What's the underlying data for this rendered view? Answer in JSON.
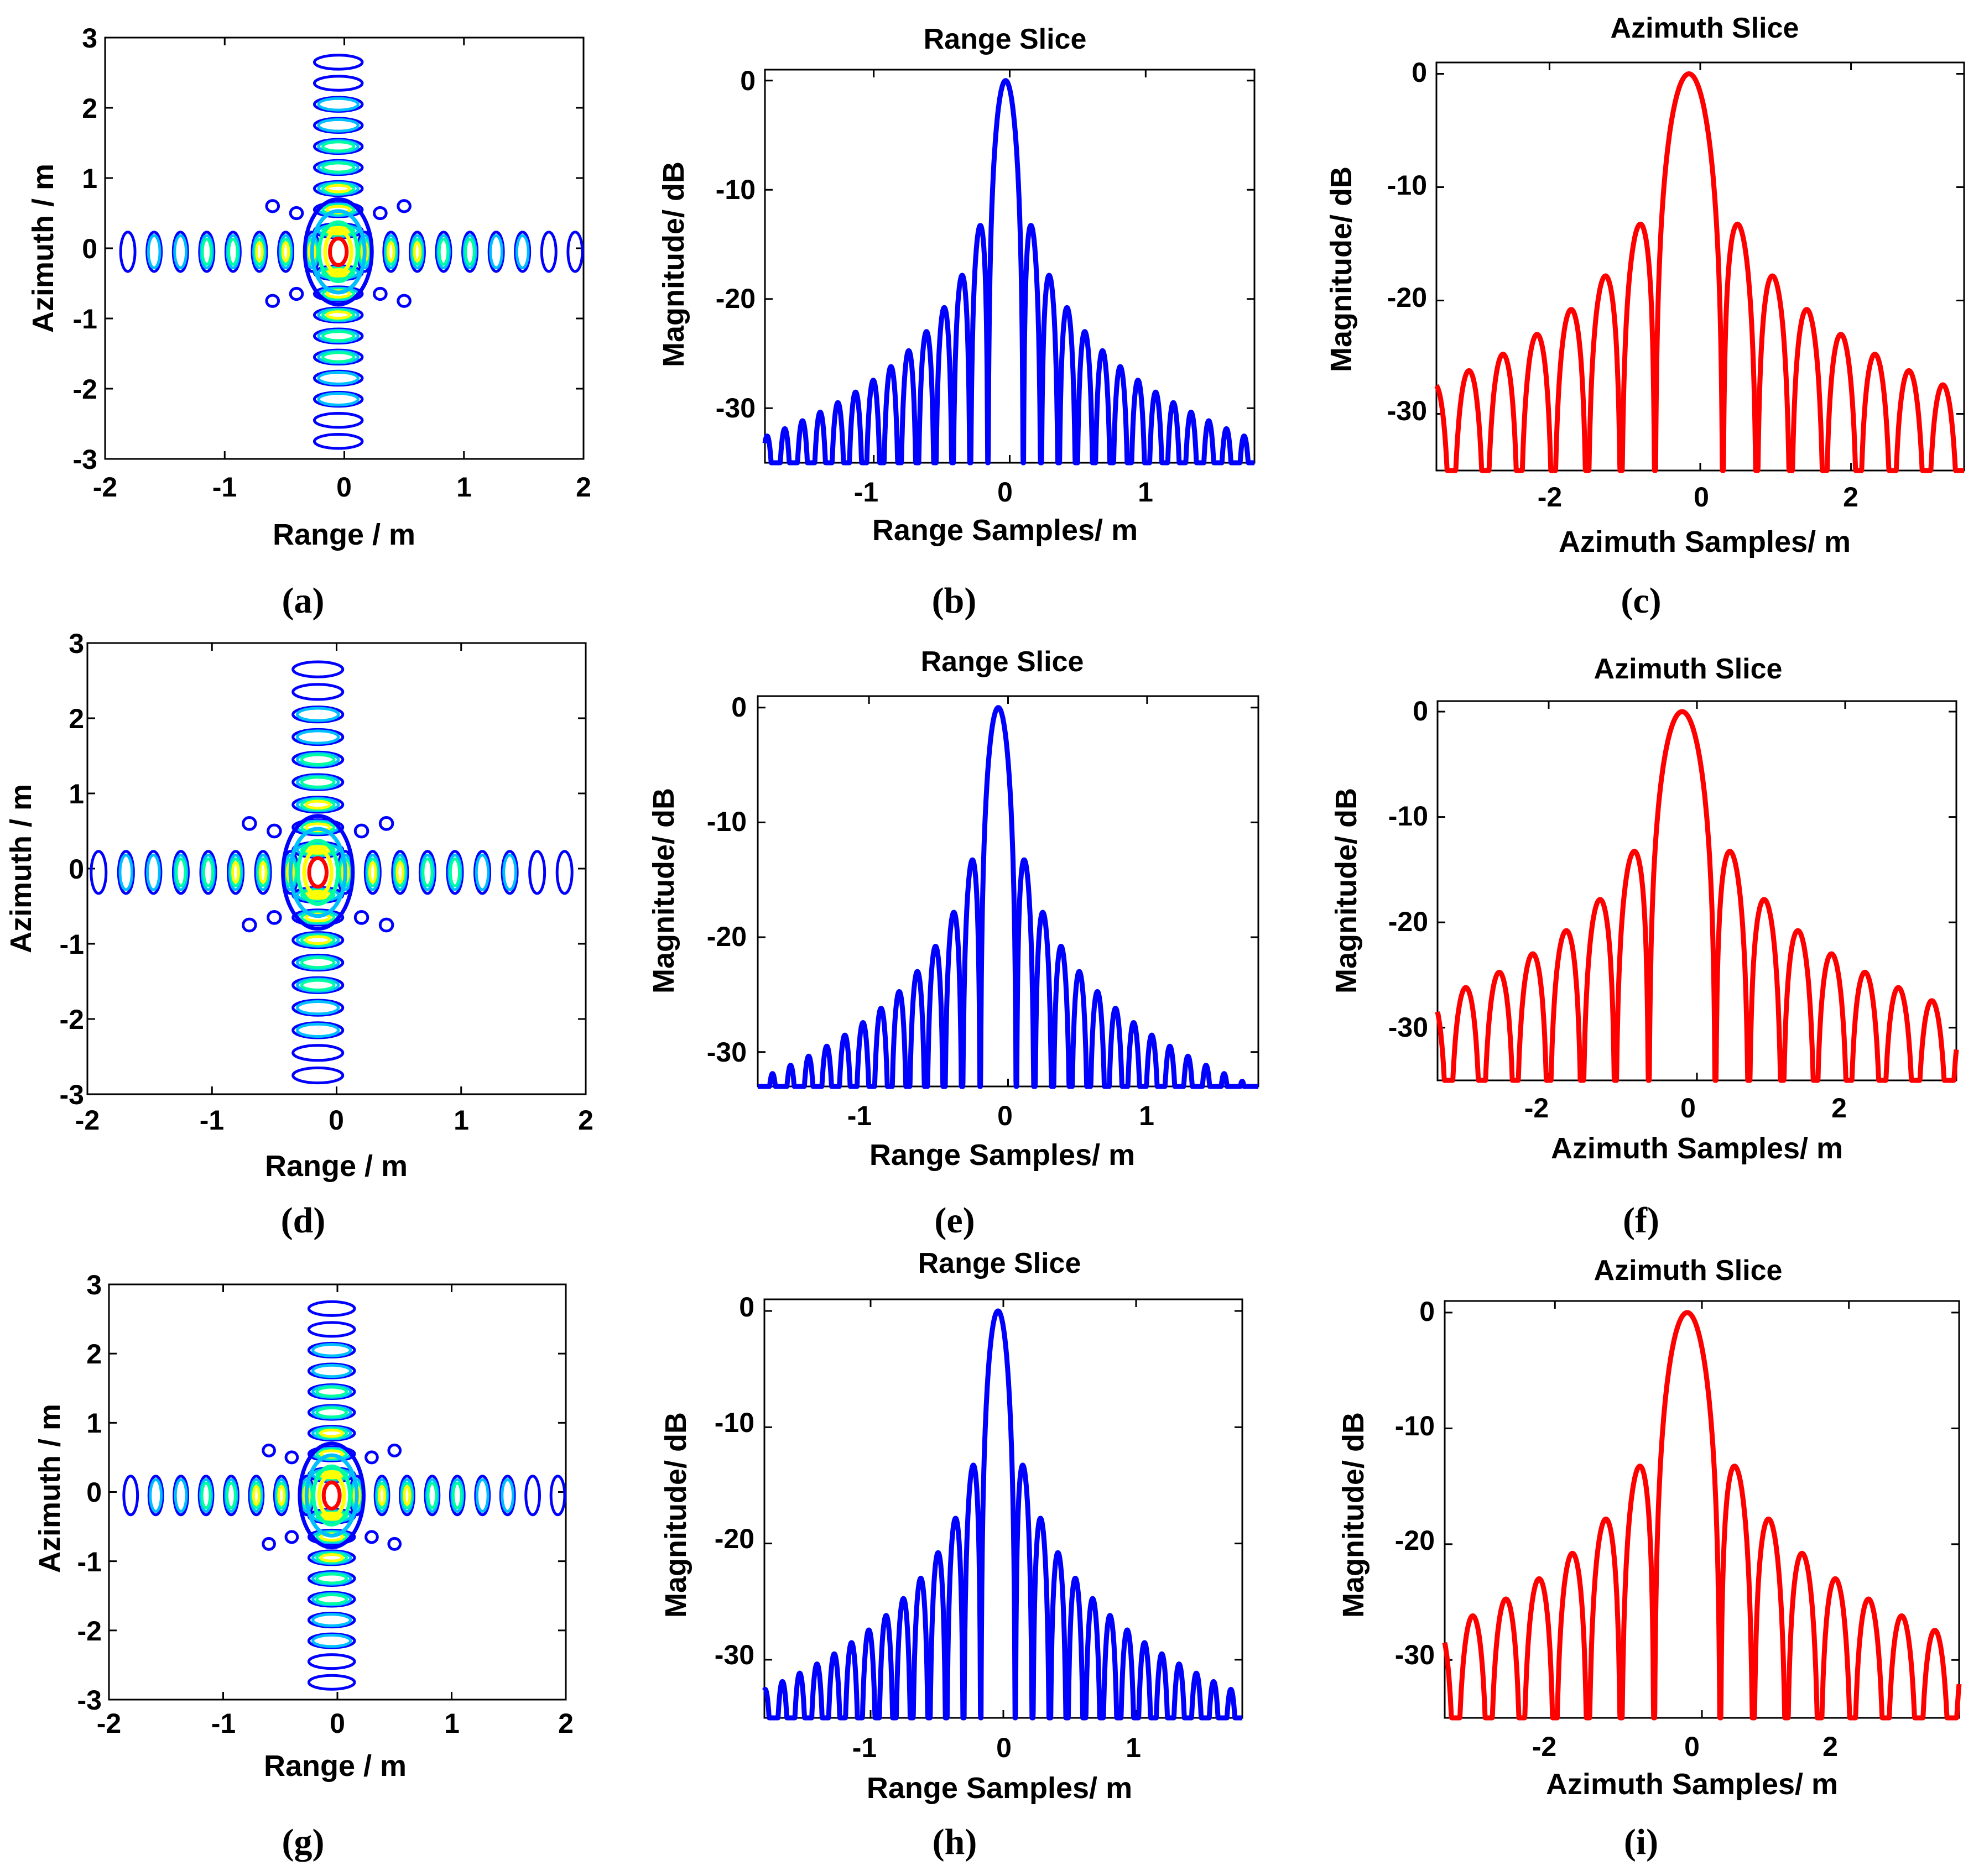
{
  "chart_data": [
    {
      "id": "a",
      "type": "contour",
      "panel_label": "(a)",
      "title": "",
      "xlabel": "Range / m",
      "ylabel": "Azimuth / m",
      "xlim": [
        -2,
        2
      ],
      "ylim": [
        -3,
        3
      ],
      "xticks": [
        "-2",
        "-1",
        "0",
        "1",
        "2"
      ],
      "yticks": [
        "-3",
        "-2",
        "-1",
        "0",
        "1",
        "2",
        "3"
      ],
      "peak": {
        "x": -0.05,
        "y": -0.05
      },
      "colormap": [
        "#00008f",
        "#0000ff",
        "#00bfff",
        "#00ffa0",
        "#ffff00",
        "#ff0000"
      ]
    },
    {
      "id": "b",
      "type": "line",
      "panel_label": "(b)",
      "title": "Range Slice",
      "xlabel": "Range Samples/ m",
      "ylabel": "Magnitude/ dB",
      "xlim": [
        -1.8,
        1.8
      ],
      "ylim": [
        -35,
        1
      ],
      "xticks": [
        "-1",
        "0",
        "1"
      ],
      "yticks": [
        "0",
        "-10",
        "-20",
        "-30"
      ],
      "series": [
        {
          "name": "range slice",
          "color": "#0000ff",
          "peak_x": -0.03,
          "mainlobe_half_width": 0.13,
          "sidelobe_spacing": 0.09,
          "first_sidelobe_db": -13.3
        }
      ]
    },
    {
      "id": "c",
      "type": "line",
      "panel_label": "(c)",
      "title": "Azimuth Slice",
      "xlabel": "Azimuth Samples/ m",
      "ylabel": "Magnitude/ dB",
      "xlim": [
        -3.5,
        3.5
      ],
      "ylim": [
        -35,
        1
      ],
      "xticks": [
        "-2",
        "0",
        "2"
      ],
      "yticks": [
        "0",
        "-10",
        "-20",
        "-30"
      ],
      "series": [
        {
          "name": "azimuth slice",
          "color": "#ff0000",
          "peak_x": -0.15,
          "mainlobe_half_width": 0.45,
          "sidelobe_spacing": 0.31,
          "first_sidelobe_db": -13.5
        }
      ]
    },
    {
      "id": "d",
      "type": "contour",
      "panel_label": "(d)",
      "title": "",
      "xlabel": "Range / m",
      "ylabel": "Azimuth / m",
      "xlim": [
        -2,
        2
      ],
      "ylim": [
        -3,
        3
      ],
      "xticks": [
        "-2",
        "-1",
        "0",
        "1",
        "2"
      ],
      "yticks": [
        "-3",
        "-2",
        "-1",
        "0",
        "1",
        "2",
        "3"
      ],
      "peak": {
        "x": -0.15,
        "y": -0.05
      },
      "colormap": [
        "#00008f",
        "#0000ff",
        "#00bfff",
        "#00ffa0",
        "#ffff00",
        "#ff0000"
      ]
    },
    {
      "id": "e",
      "type": "line",
      "panel_label": "(e)",
      "title": "Range Slice",
      "xlabel": "Range Samples/ m",
      "ylabel": "Magnitude/ dB",
      "xlim": [
        -1.8,
        1.8
      ],
      "ylim": [
        -33,
        1
      ],
      "xticks": [
        "-1",
        "0",
        "1"
      ],
      "yticks": [
        "0",
        "-10",
        "-20",
        "-30"
      ],
      "series": [
        {
          "name": "range slice",
          "color": "#0000ff",
          "peak_x": -0.07,
          "mainlobe_half_width": 0.13,
          "sidelobe_spacing": 0.09,
          "first_sidelobe_db": -13.3
        }
      ]
    },
    {
      "id": "f",
      "type": "line",
      "panel_label": "(f)",
      "title": "Azimuth Slice",
      "xlabel": "Azimuth Samples/ m",
      "ylabel": "Magnitude/ dB",
      "xlim": [
        -3.5,
        3.5
      ],
      "ylim": [
        -35,
        1
      ],
      "xticks": [
        "-2",
        "0",
        "2"
      ],
      "yticks": [
        "0",
        "-10",
        "-20",
        "-30"
      ],
      "series": [
        {
          "name": "azimuth slice",
          "color": "#ff0000",
          "peak_x": -0.2,
          "mainlobe_half_width": 0.45,
          "sidelobe_spacing": 0.31,
          "first_sidelobe_db": -13.5
        }
      ]
    },
    {
      "id": "g",
      "type": "contour",
      "panel_label": "(g)",
      "title": "",
      "xlabel": "Range / m",
      "ylabel": "Azimuth / m",
      "xlim": [
        -2,
        2
      ],
      "ylim": [
        -3,
        3
      ],
      "xticks": [
        "-2",
        "-1",
        "0",
        "1",
        "2"
      ],
      "yticks": [
        "-3",
        "-2",
        "-1",
        "0",
        "1",
        "2",
        "3"
      ],
      "peak": {
        "x": -0.05,
        "y": -0.05
      },
      "colormap": [
        "#00008f",
        "#0000ff",
        "#00bfff",
        "#00ffa0",
        "#ffff00",
        "#ff0000"
      ]
    },
    {
      "id": "h",
      "type": "line",
      "panel_label": "(h)",
      "title": "Range Slice",
      "xlabel": "Range Samples/ m",
      "ylabel": "Magnitude/ dB",
      "xlim": [
        -1.8,
        1.8
      ],
      "ylim": [
        -35,
        1
      ],
      "xticks": [
        "-1",
        "0",
        "1"
      ],
      "yticks": [
        "0",
        "-10",
        "-20",
        "-30"
      ],
      "series": [
        {
          "name": "range slice",
          "color": "#0000ff",
          "peak_x": -0.04,
          "mainlobe_half_width": 0.13,
          "sidelobe_spacing": 0.09,
          "first_sidelobe_db": -13.3
        }
      ]
    },
    {
      "id": "i",
      "type": "line",
      "panel_label": "(i)",
      "title": "Azimuth Slice",
      "xlabel": "Azimuth Samples/ m",
      "ylabel": "Magnitude/ dB",
      "xlim": [
        -3.5,
        3.5
      ],
      "ylim": [
        -35,
        1
      ],
      "xticks": [
        "-2",
        "0",
        "2"
      ],
      "yticks": [
        "0",
        "-10",
        "-20",
        "-30"
      ],
      "series": [
        {
          "name": "azimuth slice",
          "color": "#ff0000",
          "peak_x": -0.2,
          "mainlobe_half_width": 0.45,
          "sidelobe_spacing": 0.31,
          "first_sidelobe_db": -13.5
        }
      ]
    }
  ]
}
